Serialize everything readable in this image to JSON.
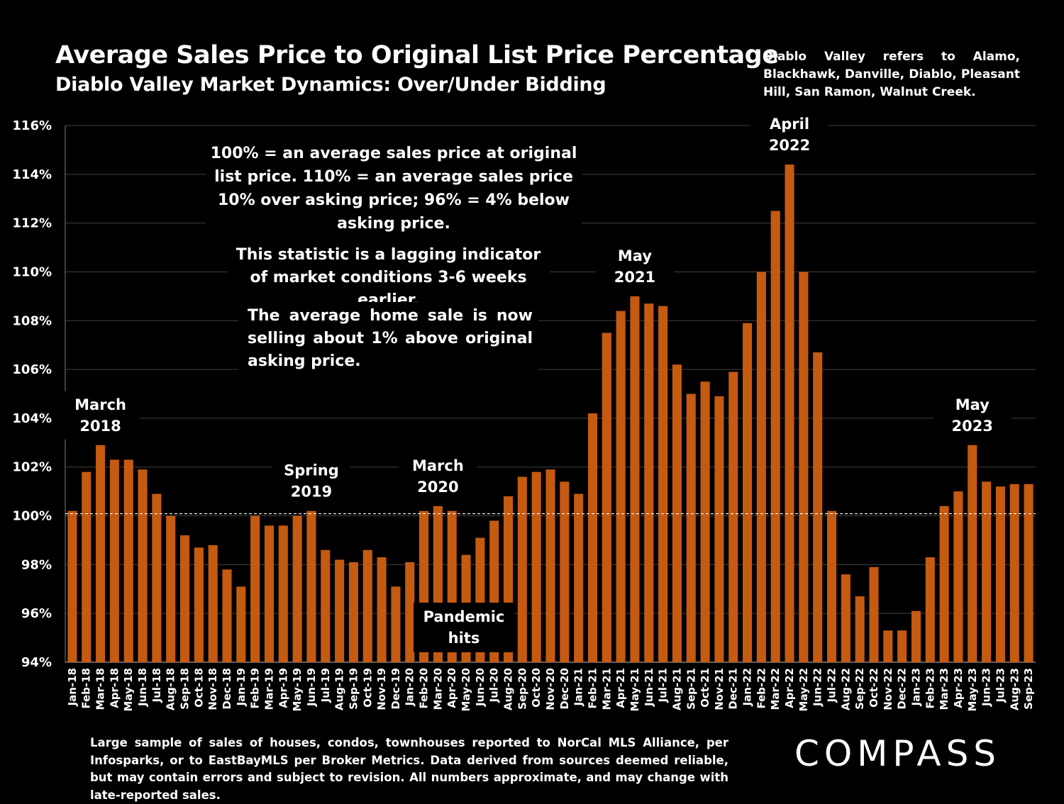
{
  "header": {
    "title": "Average Sales Price to Original List Price Percentage",
    "subtitle": "Diablo Valley Market Dynamics: Over/Under Bidding",
    "note": "Diablo Valley refers to Alamo, Blackhawk, Danville, Diablo, Pleasant Hill, San Ramon, Walnut Creek."
  },
  "callouts": {
    "definition": "100% = an average sales price at original list price. 110% = an average sales price 10% over asking price; 96% = 4% below asking price.",
    "lagging": "This statistic is a lagging indicator of market conditions 3-6 weeks earlier.",
    "current": "The average home sale is now selling about 1% above original asking price.",
    "pandemic": "Pandemic hits"
  },
  "annotations": [
    {
      "index": 2,
      "lines": [
        "March",
        "2018"
      ]
    },
    {
      "index": 17,
      "lines": [
        "Spring",
        "2019"
      ]
    },
    {
      "index": 26,
      "lines": [
        "March",
        "2020"
      ]
    },
    {
      "index": 40,
      "lines": [
        "May",
        "2021"
      ]
    },
    {
      "index": 51,
      "lines": [
        "April",
        "2022"
      ]
    },
    {
      "index": 64,
      "lines": [
        "May",
        "2023"
      ]
    }
  ],
  "footer": "Large sample of sales of houses, condos, townhouses reported to NorCal MLS Alliance, per Infosparks, or to EastBayMLS per Broker Metrics. Data derived from sources deemed reliable, but may contain errors and subject to revision. All numbers approximate, and may change with late-reported sales.",
  "logo": "COMPASS",
  "colors": {
    "bar": "#C55A11",
    "background": "#000000",
    "grid": "#404040"
  },
  "chart_data": {
    "type": "bar",
    "ylim": [
      94,
      116
    ],
    "yticks": [
      94,
      96,
      98,
      100,
      102,
      104,
      106,
      108,
      110,
      112,
      114,
      116
    ],
    "reference_line": 100,
    "grid": true,
    "categories": [
      "Jan-18",
      "Feb-18",
      "Mar-18",
      "Apr-18",
      "May-18",
      "Jun-18",
      "Jul-18",
      "Aug-18",
      "Sep-18",
      "Oct-18",
      "Nov-18",
      "Dec-18",
      "Jan-19",
      "Feb-19",
      "Mar-19",
      "Apr-19",
      "May-19",
      "Jun-19",
      "Jul-19",
      "Aug-19",
      "Sep-19",
      "Oct-19",
      "Nov-19",
      "Dec-19",
      "Jan-20",
      "Feb-20",
      "Mar-20",
      "Apr-20",
      "May-20",
      "Jun-20",
      "Jul-20",
      "Aug-20",
      "Sep-20",
      "Oct-20",
      "Nov-20",
      "Dec-20",
      "Jan-21",
      "Feb-21",
      "Mar-21",
      "Apr-21",
      "May-21",
      "Jun-21",
      "Jul-21",
      "Aug-21",
      "Sep-21",
      "Oct-21",
      "Nov-21",
      "Dec-21",
      "Jan-22",
      "Feb-22",
      "Mar-22",
      "Apr-22",
      "May-22",
      "Jun-22",
      "Jul-22",
      "Aug-22",
      "Sep-22",
      "Oct-22",
      "Nov-22",
      "Dec-22",
      "Jan-23",
      "Feb-23",
      "Mar-23",
      "Apr-23",
      "May-23",
      "Jun-23",
      "Jul-23",
      "Aug-23",
      "Sep-23"
    ],
    "values": [
      100.2,
      101.8,
      102.9,
      102.3,
      102.3,
      101.9,
      100.9,
      100.0,
      99.2,
      98.7,
      98.8,
      97.8,
      97.1,
      100.0,
      99.6,
      99.6,
      100.0,
      100.2,
      98.6,
      98.2,
      98.1,
      98.6,
      98.3,
      97.1,
      98.1,
      100.2,
      100.4,
      100.2,
      98.4,
      99.1,
      99.8,
      100.8,
      101.6,
      101.8,
      101.9,
      101.4,
      100.9,
      104.2,
      107.5,
      108.4,
      109.0,
      108.7,
      108.6,
      106.2,
      105.0,
      105.5,
      104.9,
      105.9,
      107.9,
      110.0,
      112.5,
      114.4,
      110.0,
      106.7,
      100.2,
      97.6,
      96.7,
      97.9,
      95.3,
      95.3,
      96.1,
      98.3,
      100.4,
      101.0,
      102.9,
      101.4,
      101.2,
      101.3,
      101.3
    ]
  }
}
